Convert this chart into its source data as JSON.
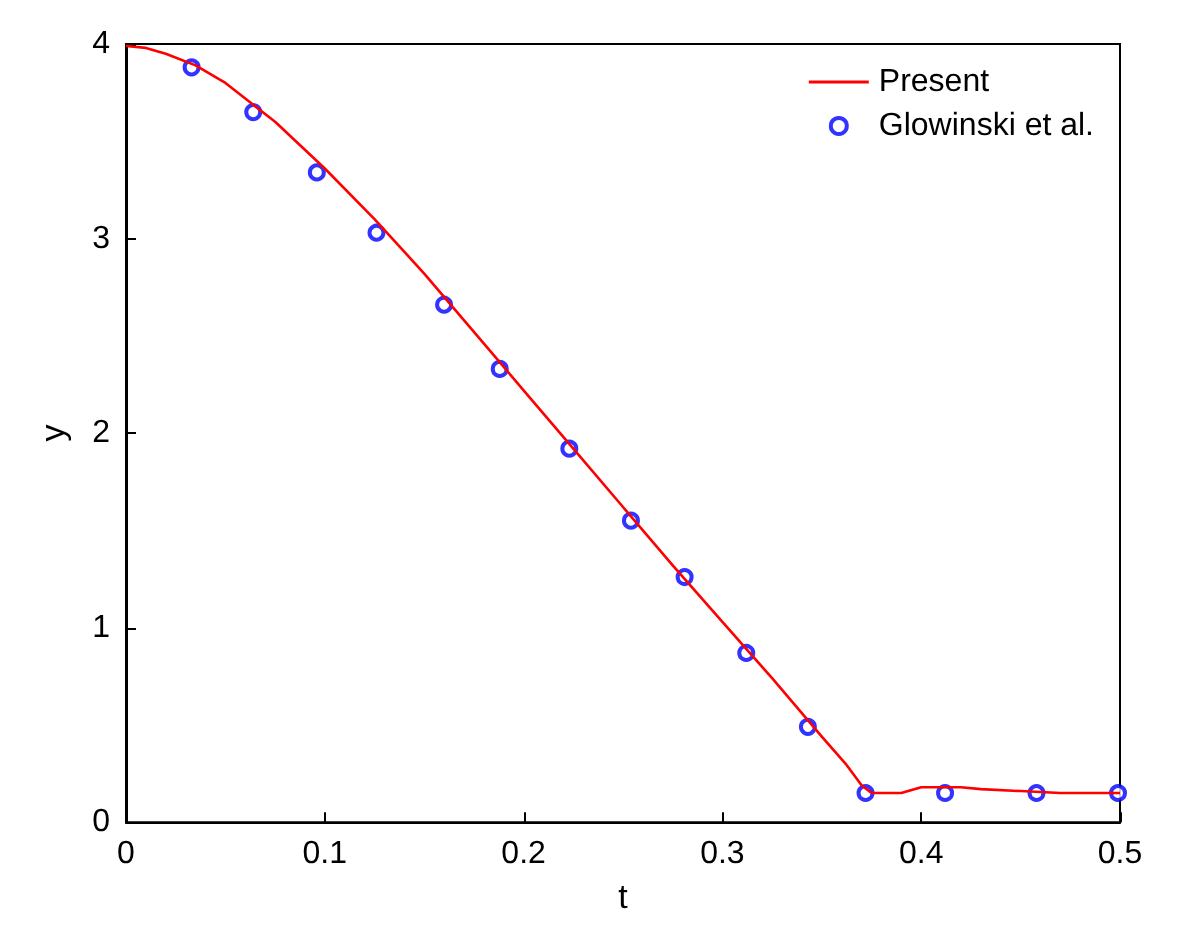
{
  "chart_data": {
    "type": "line",
    "xlabel": "t",
    "ylabel": "y",
    "xlim": [
      0,
      0.5
    ],
    "ylim": [
      0,
      4
    ],
    "xticks": [
      0,
      0.1,
      0.2,
      0.3,
      0.4,
      0.5
    ],
    "yticks": [
      0,
      1,
      2,
      3,
      4
    ],
    "grid": false,
    "legend": "top right",
    "series": [
      {
        "name": "Present",
        "color": "#ff0000",
        "marker": "none",
        "line_style": "solid",
        "x": [
          0,
          0.01,
          0.02,
          0.035,
          0.05,
          0.075,
          0.1,
          0.125,
          0.15,
          0.175,
          0.2,
          0.225,
          0.25,
          0.275,
          0.3,
          0.325,
          0.35,
          0.362,
          0.37,
          0.375,
          0.38,
          0.39,
          0.4,
          0.41,
          0.42,
          0.43,
          0.45,
          0.47,
          0.5
        ],
        "values": [
          3.99,
          3.98,
          3.95,
          3.89,
          3.8,
          3.6,
          3.36,
          3.1,
          2.82,
          2.52,
          2.22,
          1.92,
          1.62,
          1.32,
          1.03,
          0.74,
          0.44,
          0.3,
          0.19,
          0.15,
          0.15,
          0.15,
          0.18,
          0.18,
          0.18,
          0.17,
          0.16,
          0.15,
          0.15
        ]
      },
      {
        "name": "Glowinski et al.",
        "type": "scatter",
        "color": "#0000ff",
        "marker": "circle",
        "x": [
          0.033,
          0.064,
          0.096,
          0.126,
          0.16,
          0.188,
          0.223,
          0.254,
          0.281,
          0.312,
          0.343,
          0.372,
          0.412,
          0.458,
          0.499
        ],
        "values": [
          3.88,
          3.65,
          3.34,
          3.03,
          2.66,
          2.33,
          1.92,
          1.55,
          1.26,
          0.87,
          0.49,
          0.15,
          0.15,
          0.15,
          0.15
        ]
      }
    ]
  }
}
